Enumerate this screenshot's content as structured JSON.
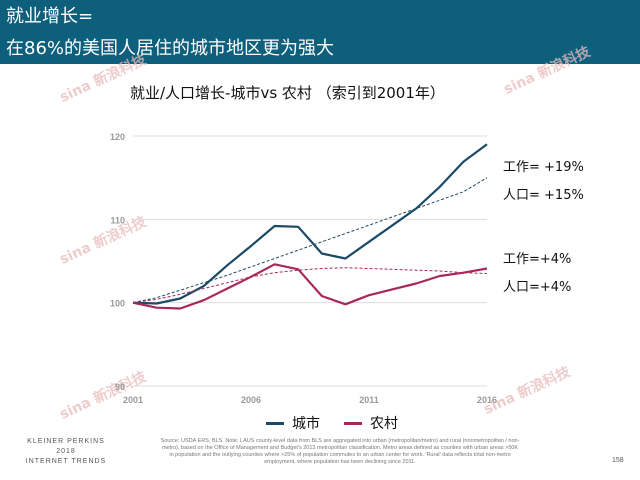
{
  "header": {
    "title_line1": "就业增长=",
    "title_line2": "在86%的美国人居住的城市地区更为强大",
    "background": "#0d5f7c"
  },
  "watermarks": [
    "sina 新浪科技",
    "sina 新浪科技",
    "sina 新浪科技",
    "sina 新浪科技",
    "sina 新浪科技"
  ],
  "chart_data": {
    "type": "line",
    "title": "就业/人口增长-城市vs 农村 （索引到2001年）",
    "x": [
      2001,
      2002,
      2003,
      2004,
      2005,
      2006,
      2007,
      2008,
      2009,
      2010,
      2011,
      2012,
      2013,
      2014,
      2015,
      2016
    ],
    "xticks": [
      2001,
      2006,
      2011,
      2016
    ],
    "yticks": [
      90,
      100,
      110,
      120
    ],
    "xlim": [
      2001,
      2016
    ],
    "ylim": [
      90,
      120
    ],
    "grid": true,
    "legend_position": "bottom",
    "series": [
      {
        "name": "城市",
        "color": "#1b4a66",
        "style": "solid",
        "values": [
          100,
          99.9,
          100.5,
          102.0,
          104.5,
          106.8,
          109.2,
          109.1,
          105.9,
          105.3,
          107.3,
          109.3,
          111.3,
          113.9,
          116.9,
          119.0
        ]
      },
      {
        "name": "农村",
        "color": "#a8285a",
        "style": "solid",
        "values": [
          100,
          99.4,
          99.3,
          100.3,
          101.7,
          103.1,
          104.6,
          104.0,
          100.8,
          99.8,
          100.9,
          101.6,
          102.3,
          103.2,
          103.6,
          104.1
        ]
      },
      {
        "color": "#1b4a66",
        "style": "dashed",
        "values": [
          100,
          100.6,
          101.5,
          102.4,
          103.3,
          104.3,
          105.3,
          106.3,
          107.3,
          108.3,
          109.3,
          110.3,
          111.3,
          112.3,
          113.3,
          115.0
        ]
      },
      {
        "color": "#a8285a",
        "style": "dashed",
        "values": [
          100,
          100.4,
          101.0,
          101.7,
          102.4,
          103.1,
          103.6,
          103.9,
          104.1,
          104.2,
          104.1,
          104.0,
          103.9,
          103.8,
          103.6,
          103.5
        ]
      }
    ],
    "annotations": [
      "工作= +19%",
      "人口= +15%",
      "工作=+4%",
      "人口=+4%"
    ]
  },
  "footer": {
    "brand_line1": "KLEINER PERKINS",
    "brand_line2": "2018",
    "brand_line3": "INTERNET TRENDS",
    "source": "Source: USDA ERS, BLS. Note: LAUS county-level data from BLS are aggregated into urban (metropolitan/metro) and rural (nonmetropolitan / non-metro), based on the Office of Management and Budget's 2013 metropolitan classification. Metro areas defined as counties with urban areas >50K in population and the outlying counties where >25% of population commutes to an urban center for work. 'Rural' data reflects total non-metro employment, where population has been declining since 2011.",
    "page": "158"
  }
}
